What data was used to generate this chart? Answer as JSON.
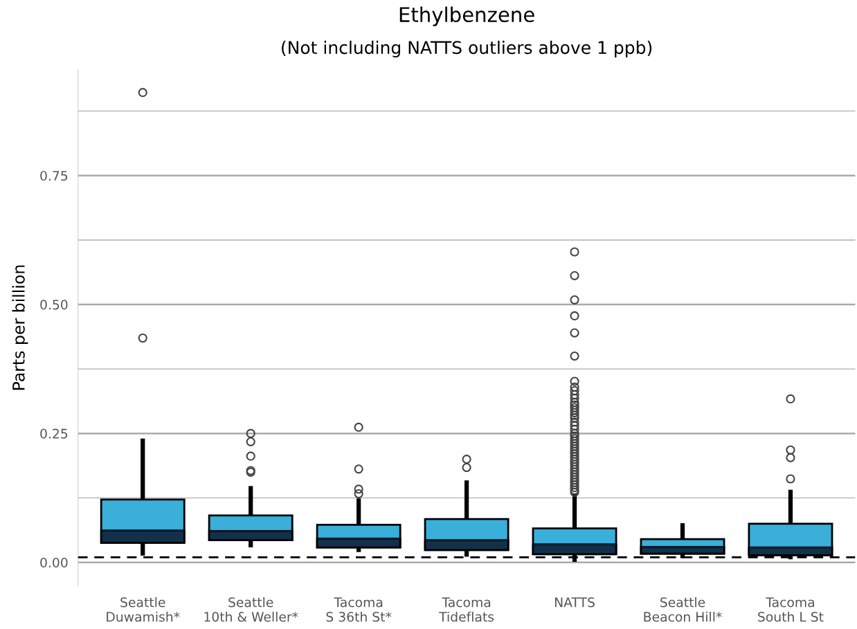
{
  "chart_data": {
    "type": "box",
    "title": "Ethylbenzene",
    "subtitle": "(Not including NATTS outliers above 1 ppb)",
    "ylabel": "Parts per billion",
    "categories": [
      "Seattle\nDuwamish*",
      "Seattle\n10th & Weller*",
      "Tacoma\nS 36th St*",
      "Tacoma\nTideflats",
      "NATTS",
      "Seattle\nBeacon Hill*",
      "Tacoma\nSouth L St"
    ],
    "series": [
      {
        "colors": [
          [
            "#39afd9",
            "#12304a"
          ],
          [
            "#39afd9",
            "#12304a"
          ],
          [
            "#39afd9",
            "#12304a"
          ],
          [
            "#39afd9",
            "#12304a"
          ],
          [
            "#39afd9",
            "#12304a"
          ],
          [
            "#39afd9",
            "#12304a"
          ],
          [
            "#39afd9",
            "#12304a"
          ]
        ],
        "boxes": [
          {
            "low": 0.013,
            "q1": 0.038,
            "median": 0.062,
            "q3": 0.122,
            "high": 0.24,
            "outliers": [
              0.435,
              0.911
            ]
          },
          {
            "low": 0.029,
            "q1": 0.043,
            "median": 0.061,
            "q3": 0.091,
            "high": 0.148,
            "outliers": [
              0.175,
              0.178,
              0.206,
              0.234,
              0.25
            ]
          },
          {
            "low": 0.02,
            "q1": 0.029,
            "median": 0.046,
            "q3": 0.073,
            "high": 0.124,
            "outliers": [
              0.133,
              0.142,
              0.181,
              0.262
            ]
          },
          {
            "low": 0.011,
            "q1": 0.024,
            "median": 0.043,
            "q3": 0.084,
            "high": 0.159,
            "outliers": [
              0.184,
              0.2
            ]
          },
          {
            "low": 0.001,
            "q1": 0.016,
            "median": 0.035,
            "q3": 0.066,
            "high": 0.133,
            "outliers": [
              0.136,
              0.14,
              0.145,
              0.15,
              0.155,
              0.16,
              0.165,
              0.17,
              0.175,
              0.18,
              0.185,
              0.19,
              0.195,
              0.2,
              0.205,
              0.21,
              0.215,
              0.22,
              0.225,
              0.23,
              0.235,
              0.24,
              0.245,
              0.25,
              0.258,
              0.265,
              0.272,
              0.28,
              0.285,
              0.29,
              0.295,
              0.3,
              0.305,
              0.31,
              0.318,
              0.325,
              0.333,
              0.34,
              0.351,
              0.4,
              0.445,
              0.478,
              0.509,
              0.556,
              0.602
            ]
          },
          {
            "low": 0.008,
            "q1": 0.017,
            "median": 0.03,
            "q3": 0.045,
            "high": 0.076
          },
          {
            "low": 0.006,
            "q1": 0.014,
            "median": 0.029,
            "q3": 0.075,
            "high": 0.141,
            "outliers": [
              0.162,
              0.203,
              0.218,
              0.317
            ]
          }
        ]
      }
    ],
    "ylim": [
      -0.045,
      0.955
    ],
    "yticks": [
      {
        "value": 0,
        "label": "0.00"
      },
      {
        "value": 0.125,
        "label": null
      },
      {
        "value": 0.25,
        "label": "0.25"
      },
      {
        "value": 0.375,
        "label": null
      },
      {
        "value": 0.5,
        "label": "0.50"
      },
      {
        "value": 0.625,
        "label": null
      },
      {
        "value": 0.75,
        "label": "0.75"
      },
      {
        "value": 0.875,
        "label": null
      }
    ],
    "ref_lines": [
      {
        "axis": "y",
        "value": 0.01,
        "color": "#000000",
        "line_style": "dashed"
      }
    ],
    "grid": "y",
    "marker": "circle"
  }
}
